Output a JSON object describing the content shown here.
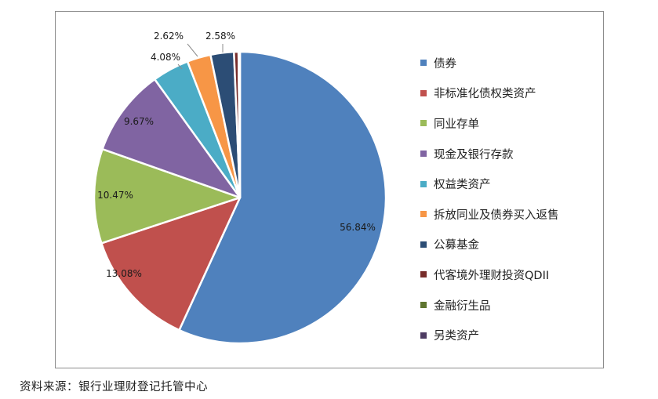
{
  "chart_data": {
    "type": "pie",
    "title": "",
    "legend_position": "right",
    "start_angle": "top",
    "direction": "clockwise",
    "slices": [
      {
        "name": "债券",
        "value": 56.84,
        "label": "56.84%",
        "color": "#4F81BD"
      },
      {
        "name": "非标准化债权类资产",
        "value": 13.08,
        "label": "13.08%",
        "color": "#C0504D"
      },
      {
        "name": "同业存单",
        "value": 10.47,
        "label": "10.47%",
        "color": "#9BBB59"
      },
      {
        "name": "现金及银行存款",
        "value": 9.67,
        "label": "9.67%",
        "color": "#8064A2"
      },
      {
        "name": "权益类资产",
        "value": 4.08,
        "label": "4.08%",
        "color": "#4BACC6"
      },
      {
        "name": "拆放同业及债券买入返售",
        "value": 2.62,
        "label": "2.62%",
        "color": "#F79646"
      },
      {
        "name": "公募基金",
        "value": 2.58,
        "label": "2.58%",
        "color": "#2C4D75"
      },
      {
        "name": "代客境外理财投资QDII",
        "value": 0.5,
        "label": "",
        "color": "#772C2A"
      },
      {
        "name": "金融衍生品",
        "value": 0.01,
        "label": "",
        "color": "#5F7530"
      },
      {
        "name": "另类资产",
        "value": 0.15,
        "label": "",
        "color": "#4D3B62"
      }
    ]
  },
  "source": "资料来源：银行业理财登记托管中心"
}
